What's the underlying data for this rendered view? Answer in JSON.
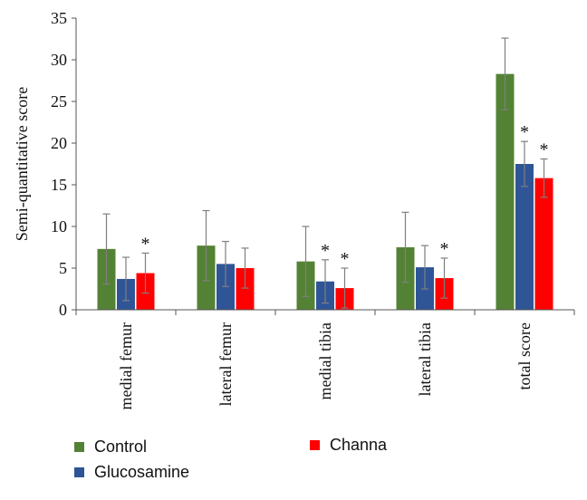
{
  "chart_data": {
    "type": "bar",
    "title": "",
    "xlabel": "",
    "ylabel": "Semi-quantitative score",
    "ylim": [
      0,
      35
    ],
    "yticks": [
      0,
      5,
      10,
      15,
      20,
      25,
      30,
      35
    ],
    "categories": [
      "medial femur",
      "lateral femur",
      "medial tibia",
      "lateral tibia",
      "total score"
    ],
    "series": [
      {
        "name": "Control",
        "color": "#548235",
        "values": [
          7.3,
          7.7,
          5.8,
          7.5,
          28.3
        ],
        "errors": [
          4.2,
          4.2,
          4.2,
          4.2,
          4.3
        ],
        "significant": [
          false,
          false,
          false,
          false,
          false
        ]
      },
      {
        "name": "Glucosamine",
        "color": "#2F5597",
        "values": [
          3.7,
          5.5,
          3.4,
          5.1,
          17.5
        ],
        "errors": [
          2.6,
          2.7,
          2.6,
          2.6,
          2.7
        ],
        "significant": [
          false,
          false,
          true,
          false,
          true
        ]
      },
      {
        "name": "Channa",
        "color": "#FF0000",
        "values": [
          4.4,
          5.0,
          2.6,
          3.8,
          15.8
        ],
        "errors": [
          2.4,
          2.4,
          2.4,
          2.4,
          2.3
        ],
        "significant": [
          true,
          false,
          true,
          true,
          true
        ]
      }
    ],
    "significance_marker": "*",
    "grid": false,
    "legend_position": "bottom"
  }
}
